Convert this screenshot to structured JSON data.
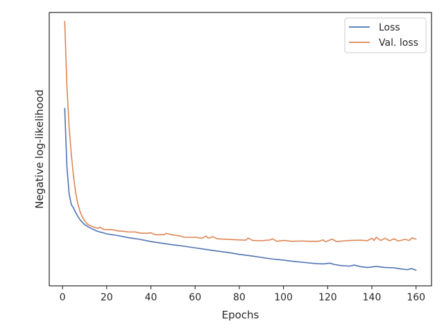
{
  "chart_data": {
    "type": "line",
    "xlabel": "Epochs",
    "ylabel": "Negative log-likelihood",
    "xlim": [
      -6,
      167
    ],
    "ylim": [
      0,
      1
    ],
    "x_ticks": [
      0,
      20,
      40,
      60,
      80,
      100,
      120,
      140,
      160
    ],
    "y_ticks_visible": false,
    "grid": false,
    "legend_position": "top-right",
    "series": [
      {
        "name": "Loss",
        "color": "#4c72b0",
        "points": [
          [
            1,
            0.649
          ],
          [
            2,
            0.435
          ],
          [
            3,
            0.336
          ],
          [
            4,
            0.297
          ],
          [
            5,
            0.284
          ],
          [
            6,
            0.268
          ],
          [
            7,
            0.253
          ],
          [
            8,
            0.241
          ],
          [
            9,
            0.232
          ],
          [
            10,
            0.224
          ],
          [
            12,
            0.214
          ],
          [
            14,
            0.206
          ],
          [
            16,
            0.199
          ],
          [
            18,
            0.195
          ],
          [
            20,
            0.19
          ],
          [
            25,
            0.184
          ],
          [
            30,
            0.176
          ],
          [
            35,
            0.17
          ],
          [
            40,
            0.162
          ],
          [
            45,
            0.156
          ],
          [
            50,
            0.15
          ],
          [
            55,
            0.145
          ],
          [
            60,
            0.139
          ],
          [
            65,
            0.133
          ],
          [
            70,
            0.127
          ],
          [
            75,
            0.122
          ],
          [
            80,
            0.115
          ],
          [
            85,
            0.11
          ],
          [
            90,
            0.104
          ],
          [
            95,
            0.098
          ],
          [
            100,
            0.094
          ],
          [
            105,
            0.089
          ],
          [
            110,
            0.085
          ],
          [
            115,
            0.081
          ],
          [
            118,
            0.08
          ],
          [
            121,
            0.083
          ],
          [
            123,
            0.078
          ],
          [
            126,
            0.074
          ],
          [
            130,
            0.072
          ],
          [
            132,
            0.076
          ],
          [
            135,
            0.07
          ],
          [
            138,
            0.067
          ],
          [
            142,
            0.071
          ],
          [
            146,
            0.067
          ],
          [
            150,
            0.066
          ],
          [
            153,
            0.062
          ],
          [
            156,
            0.059
          ],
          [
            158,
            0.063
          ],
          [
            160,
            0.057
          ]
        ]
      },
      {
        "name": "Val. loss",
        "color": "#dd8452",
        "points": [
          [
            1,
            0.967
          ],
          [
            2,
            0.73
          ],
          [
            3,
            0.58
          ],
          [
            4,
            0.479
          ],
          [
            5,
            0.399
          ],
          [
            6,
            0.338
          ],
          [
            7,
            0.298
          ],
          [
            8,
            0.27
          ],
          [
            9,
            0.252
          ],
          [
            10,
            0.238
          ],
          [
            11,
            0.228
          ],
          [
            12,
            0.222
          ],
          [
            14,
            0.215
          ],
          [
            16,
            0.21
          ],
          [
            17,
            0.215
          ],
          [
            18,
            0.208
          ],
          [
            20,
            0.205
          ],
          [
            22,
            0.206
          ],
          [
            25,
            0.201
          ],
          [
            28,
            0.199
          ],
          [
            30,
            0.197
          ],
          [
            33,
            0.197
          ],
          [
            35,
            0.193
          ],
          [
            38,
            0.192
          ],
          [
            40,
            0.194
          ],
          [
            42,
            0.187
          ],
          [
            46,
            0.187
          ],
          [
            47,
            0.192
          ],
          [
            50,
            0.186
          ],
          [
            53,
            0.183
          ],
          [
            55,
            0.178
          ],
          [
            58,
            0.177
          ],
          [
            60,
            0.178
          ],
          [
            63,
            0.174
          ],
          [
            65,
            0.182
          ],
          [
            66,
            0.174
          ],
          [
            68,
            0.18
          ],
          [
            70,
            0.172
          ],
          [
            75,
            0.17
          ],
          [
            80,
            0.168
          ],
          [
            83,
            0.167
          ],
          [
            84,
            0.175
          ],
          [
            86,
            0.166
          ],
          [
            90,
            0.165
          ],
          [
            94,
            0.168
          ],
          [
            95,
            0.172
          ],
          [
            97,
            0.163
          ],
          [
            100,
            0.166
          ],
          [
            104,
            0.163
          ],
          [
            108,
            0.164
          ],
          [
            112,
            0.163
          ],
          [
            116,
            0.163
          ],
          [
            118,
            0.168
          ],
          [
            119,
            0.161
          ],
          [
            122,
            0.171
          ],
          [
            124,
            0.162
          ],
          [
            127,
            0.164
          ],
          [
            130,
            0.166
          ],
          [
            135,
            0.167
          ],
          [
            138,
            0.165
          ],
          [
            140,
            0.174
          ],
          [
            141,
            0.166
          ],
          [
            142,
            0.178
          ],
          [
            144,
            0.166
          ],
          [
            146,
            0.174
          ],
          [
            148,
            0.165
          ],
          [
            150,
            0.172
          ],
          [
            152,
            0.164
          ],
          [
            155,
            0.17
          ],
          [
            157,
            0.166
          ],
          [
            158,
            0.175
          ],
          [
            160,
            0.171
          ]
        ]
      }
    ]
  }
}
